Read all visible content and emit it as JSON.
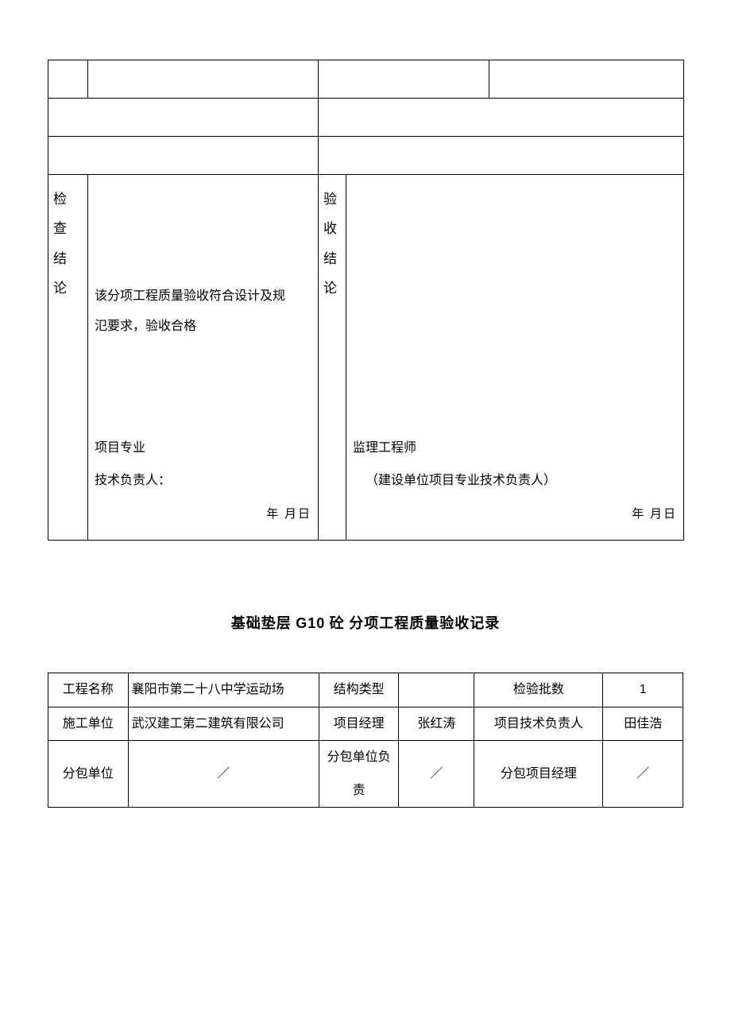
{
  "table1": {
    "inspection_label": "检查结论",
    "inspection_text_line1": "该分项工程质量验收符合设计及规",
    "inspection_text_line2": "氾要求，验收合格",
    "inspection_sig_line1": "项目专业",
    "inspection_sig_line2": "技术负责人：",
    "inspection_date": "年 月日",
    "acceptance_label": "验收结论",
    "acceptance_sig_line1": "监理工程师",
    "acceptance_sig_line2": "（建设单位项目专业技术负责人）",
    "acceptance_date": "年 月日"
  },
  "section_title": {
    "prefix": "基础垫层",
    "code": "G10",
    "suffix1": "砼",
    "suffix2": "分项工程质量验收记录"
  },
  "table2": {
    "row1": {
      "label": "工程名称",
      "value": "襄阳市第二十八中学运动场",
      "col3_label": "结构类型",
      "col4_value": "",
      "col5_label": "检验批数",
      "col6_value": "1"
    },
    "row2": {
      "label": "施工单位",
      "value": "武汉建工第二建筑有限公司",
      "col3_label": "项目经理",
      "col4_value": "张红涛",
      "col5_label": "项目技术负责人",
      "col6_value": "田佳浩"
    },
    "row3": {
      "label": "分包单位",
      "value": "／",
      "col3_label": "分包单位负责",
      "col4_value": "／",
      "col5_label": "分包项目经理",
      "col6_value": "／"
    }
  },
  "styling": {
    "background_color": "#ffffff",
    "border_color": "#000000",
    "text_color": "#000000",
    "body_fontsize": 16,
    "title_fontsize": 18,
    "font_family": "SimSun"
  }
}
